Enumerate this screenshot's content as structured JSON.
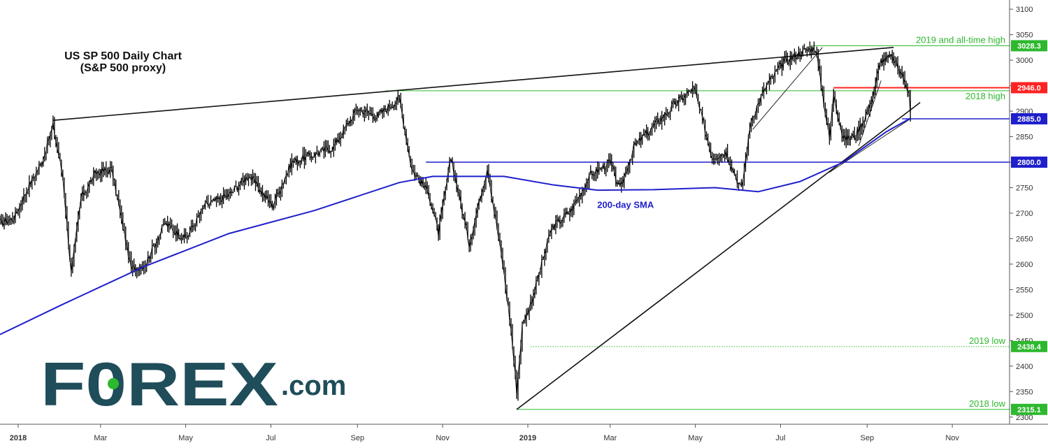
{
  "chart_data": {
    "type": "line",
    "title_line1": "US SP 500 Daily Chart",
    "title_line2": "(S&P 500 proxy)",
    "y_ticks": [
      3100,
      3050,
      3000,
      2950,
      2900,
      2850,
      2800,
      2750,
      2700,
      2650,
      2600,
      2550,
      2500,
      2450,
      2400,
      2350,
      2300
    ],
    "ylim": [
      2286,
      3118
    ],
    "x_ticks": [
      {
        "label": "2018",
        "date": "2018-01-01"
      },
      {
        "label": "Mar",
        "date": "2018-03-01"
      },
      {
        "label": "May",
        "date": "2018-05-01"
      },
      {
        "label": "Jul",
        "date": "2018-07-01"
      },
      {
        "label": "Sep",
        "date": "2018-09-01"
      },
      {
        "label": "Nov",
        "date": "2018-11-01"
      },
      {
        "label": "2019",
        "date": "2019-01-01"
      },
      {
        "label": "Mar",
        "date": "2019-03-01"
      },
      {
        "label": "May",
        "date": "2019-05-01"
      },
      {
        "label": "Jul",
        "date": "2019-07-01"
      },
      {
        "label": "Sep",
        "date": "2019-09-01"
      },
      {
        "label": "Nov",
        "date": "2019-11-01"
      }
    ],
    "xlim": [
      "2017-12-19",
      "2019-12-12"
    ],
    "series": [
      {
        "type": "bars",
        "color": "#000000",
        "points": [
          [
            "2017-12-19",
            2680
          ],
          [
            "2017-12-29",
            2690
          ],
          [
            "2018-01-08",
            2750
          ],
          [
            "2018-01-18",
            2800
          ],
          [
            "2018-01-26",
            2872
          ],
          [
            "2018-02-02",
            2770
          ],
          [
            "2018-02-08",
            2580
          ],
          [
            "2018-02-15",
            2730
          ],
          [
            "2018-02-26",
            2780
          ],
          [
            "2018-03-09",
            2785
          ],
          [
            "2018-03-23",
            2590
          ],
          [
            "2018-04-02",
            2600
          ],
          [
            "2018-04-16",
            2680
          ],
          [
            "2018-05-01",
            2650
          ],
          [
            "2018-05-15",
            2715
          ],
          [
            "2018-06-01",
            2735
          ],
          [
            "2018-06-15",
            2775
          ],
          [
            "2018-07-02",
            2715
          ],
          [
            "2018-07-16",
            2800
          ],
          [
            "2018-08-01",
            2815
          ],
          [
            "2018-08-15",
            2830
          ],
          [
            "2018-09-01",
            2905
          ],
          [
            "2018-09-15",
            2890
          ],
          [
            "2018-10-01",
            2925
          ],
          [
            "2018-10-10",
            2785
          ],
          [
            "2018-10-22",
            2740
          ],
          [
            "2018-10-29",
            2660
          ],
          [
            "2018-11-07",
            2810
          ],
          [
            "2018-11-20",
            2640
          ],
          [
            "2018-12-03",
            2790
          ],
          [
            "2018-12-14",
            2600
          ],
          [
            "2018-12-20",
            2470
          ],
          [
            "2018-12-24",
            2350
          ],
          [
            "2018-12-28",
            2480
          ],
          [
            "2019-01-04",
            2530
          ],
          [
            "2019-01-18",
            2670
          ],
          [
            "2019-02-01",
            2705
          ],
          [
            "2019-02-15",
            2775
          ],
          [
            "2019-03-01",
            2800
          ],
          [
            "2019-03-08",
            2745
          ],
          [
            "2019-03-18",
            2830
          ],
          [
            "2019-04-01",
            2870
          ],
          [
            "2019-04-15",
            2910
          ],
          [
            "2019-04-30",
            2945
          ],
          [
            "2019-05-13",
            2810
          ],
          [
            "2019-05-23",
            2820
          ],
          [
            "2019-06-03",
            2745
          ],
          [
            "2019-06-10",
            2885
          ],
          [
            "2019-06-21",
            2950
          ],
          [
            "2019-07-03",
            2995
          ],
          [
            "2019-07-15",
            3015
          ],
          [
            "2019-07-26",
            3025
          ],
          [
            "2019-08-05",
            2845
          ],
          [
            "2019-08-08",
            2935
          ],
          [
            "2019-08-15",
            2845
          ],
          [
            "2019-08-23",
            2850
          ],
          [
            "2019-08-27",
            2870
          ],
          [
            "2019-09-03",
            2910
          ],
          [
            "2019-09-11",
            3000
          ],
          [
            "2019-09-19",
            3005
          ],
          [
            "2019-09-27",
            2965
          ],
          [
            "2019-10-01",
            2940
          ],
          [
            "2019-10-02",
            2890
          ]
        ]
      },
      {
        "name": "200-day SMA",
        "type": "line",
        "color": "#1f1fcc",
        "points": [
          [
            "2017-12-19",
            2462
          ],
          [
            "2018-02-01",
            2520
          ],
          [
            "2018-04-01",
            2595
          ],
          [
            "2018-06-01",
            2660
          ],
          [
            "2018-08-01",
            2705
          ],
          [
            "2018-10-01",
            2760
          ],
          [
            "2018-10-25",
            2772
          ],
          [
            "2018-12-15",
            2772
          ],
          [
            "2019-01-20",
            2755
          ],
          [
            "2019-02-20",
            2745
          ],
          [
            "2019-04-01",
            2746
          ],
          [
            "2019-05-15",
            2750
          ],
          [
            "2019-06-15",
            2742
          ],
          [
            "2019-07-15",
            2762
          ],
          [
            "2019-08-15",
            2800
          ],
          [
            "2019-09-15",
            2860
          ],
          [
            "2019-10-02",
            2886
          ]
        ]
      }
    ],
    "lines": [
      {
        "color": "#111111",
        "width": 1.6,
        "from": [
          "2018-01-26",
          2882
        ],
        "to": [
          "2019-09-20",
          3025
        ]
      },
      {
        "color": "#111111",
        "width": 1.6,
        "from": [
          "2018-12-24",
          2315
        ],
        "to": [
          "2019-10-09",
          2917
        ]
      },
      {
        "color": "#111111",
        "width": 0.9,
        "from": [
          "2019-06-11",
          2864
        ],
        "to": [
          "2019-07-31",
          3025
        ]
      },
      {
        "color": "#111111",
        "width": 0.9,
        "from": [
          "2019-08-26",
          2832
        ],
        "to": [
          "2019-09-11",
          2960
        ]
      },
      {
        "color": "#111111",
        "width": 0.9,
        "from": [
          "2019-08-05",
          2780
        ],
        "to": [
          "2019-10-02",
          2885
        ]
      }
    ],
    "levels": [
      {
        "value": 3028.3,
        "label": "3028.3",
        "color": "#2eb82e",
        "start": "2019-07-23",
        "style": "solid",
        "annotation": "2019 and all-time high"
      },
      {
        "value": 2946.0,
        "label": "2946.0",
        "color": "#ff2222",
        "start": "2019-08-08",
        "style": "solid",
        "annotation": ""
      },
      {
        "value": 2940.0,
        "label": "",
        "color": "#2eb82e",
        "start": "2018-09-21",
        "style": "solid",
        "annotation": "2018 high"
      },
      {
        "value": 2885.0,
        "label": "2885.0",
        "color": "#1f1fcc",
        "start": "2019-09-26",
        "style": "solid",
        "annotation": ""
      },
      {
        "value": 2800.0,
        "label": "2800.0",
        "color": "#1f1fcc",
        "start": "2018-10-20",
        "style": "solid",
        "annotation": ""
      },
      {
        "value": 2438.4,
        "label": "2438.4",
        "color": "#2eb82e",
        "start": "2019-01-03",
        "style": "dotted",
        "annotation": "2019 low"
      },
      {
        "value": 2315.1,
        "label": "2315.1",
        "color": "#2eb82e",
        "start": "2018-12-24",
        "style": "solid",
        "annotation": "2018 low"
      }
    ],
    "annotations": [
      {
        "text": "200-day SMA",
        "date": "2019-03-12",
        "value": 2710
      }
    ]
  },
  "logo": {
    "main": "F0REX",
    "suffix": ".com",
    "color": "#1f4d5a",
    "accent": "#2eb82e"
  }
}
